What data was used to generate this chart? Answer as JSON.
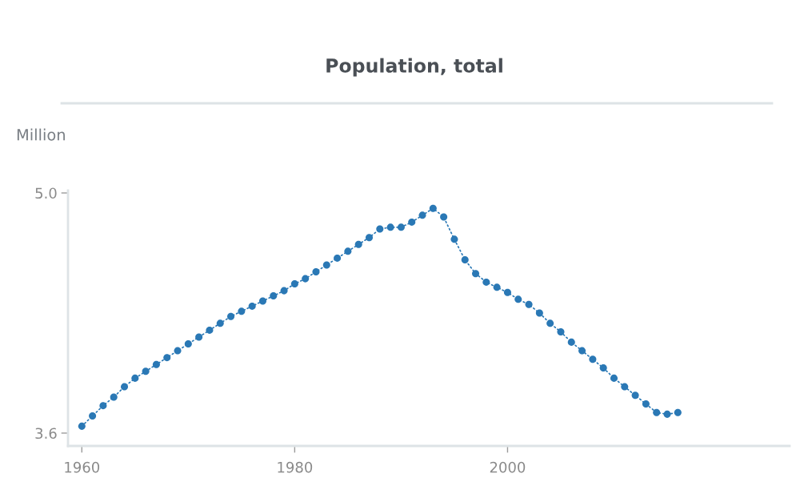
{
  "chart_data": {
    "type": "line",
    "title": "Population, total",
    "ylabel": "Million",
    "x": [
      1960,
      1961,
      1962,
      1963,
      1964,
      1965,
      1966,
      1967,
      1968,
      1969,
      1970,
      1971,
      1972,
      1973,
      1974,
      1975,
      1976,
      1977,
      1978,
      1979,
      1980,
      1981,
      1982,
      1983,
      1984,
      1985,
      1986,
      1987,
      1988,
      1989,
      1990,
      1991,
      1992,
      1993,
      1994,
      1995,
      1996,
      1997,
      1998,
      1999,
      2000,
      2001,
      2002,
      2003,
      2004,
      2005,
      2006,
      2007,
      2008,
      2009,
      2010,
      2011,
      2012,
      2013,
      2014,
      2015,
      2016
    ],
    "series": [
      {
        "color": "#2a78b5",
        "values": [
          3.64,
          3.7,
          3.76,
          3.81,
          3.87,
          3.92,
          3.96,
          4.0,
          4.04,
          4.08,
          4.12,
          4.16,
          4.2,
          4.24,
          4.28,
          4.31,
          4.34,
          4.37,
          4.4,
          4.43,
          4.47,
          4.5,
          4.54,
          4.58,
          4.62,
          4.66,
          4.7,
          4.74,
          4.79,
          4.8,
          4.8,
          4.83,
          4.87,
          4.91,
          4.86,
          4.73,
          4.61,
          4.53,
          4.48,
          4.45,
          4.42,
          4.38,
          4.35,
          4.3,
          4.24,
          4.19,
          4.13,
          4.08,
          4.03,
          3.98,
          3.92,
          3.87,
          3.82,
          3.77,
          3.72,
          3.71,
          3.72
        ]
      }
    ],
    "xlim": [
      1958.7,
      2026.5
    ],
    "ylim": [
      3.525,
      5.014
    ],
    "xticks": [
      1960,
      1980,
      2000
    ],
    "yticks": [
      {
        "value": 3.6,
        "label": "3.6"
      },
      {
        "value": 5.0,
        "label": "5.0"
      }
    ],
    "line_style": "dotted",
    "marker": "circle",
    "grid": false,
    "legend": false
  }
}
